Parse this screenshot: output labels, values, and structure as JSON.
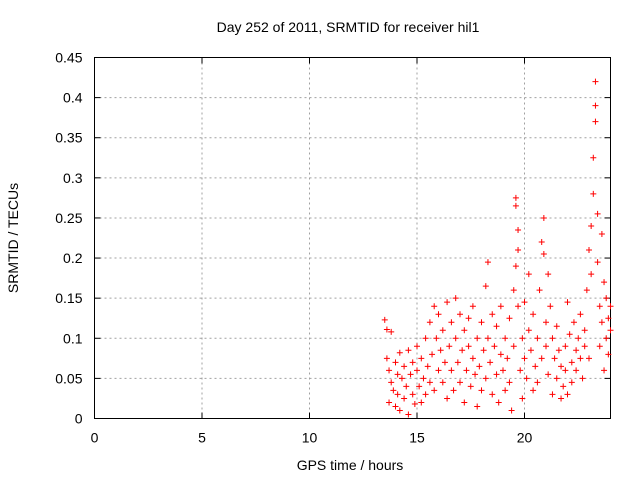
{
  "chart_data": {
    "type": "scatter",
    "title": "Day 252 of 2011, SRMTID for receiver hil1",
    "xlabel": "GPS time / hours",
    "ylabel": "SRMTID / TECUs",
    "xlim": [
      0,
      24
    ],
    "ylim": [
      0,
      0.45
    ],
    "x_ticks": [
      0,
      5,
      10,
      15,
      20
    ],
    "y_ticks": [
      0,
      0.05,
      0.1,
      0.15,
      0.2,
      0.25,
      0.3,
      0.35,
      0.4,
      0.45
    ],
    "x_tick_labels": [
      "0",
      "5",
      "10",
      "15",
      "20"
    ],
    "y_tick_labels": [
      "0",
      "0.05",
      "0.1",
      "0.15",
      "0.2",
      "0.25",
      "0.3",
      "0.35",
      "0.4",
      "0.45"
    ],
    "grid": true,
    "marker": "plus",
    "color": "#ff0000",
    "series": [
      {
        "points": [
          [
            13.5,
            0.123
          ],
          [
            13.6,
            0.111
          ],
          [
            13.6,
            0.075
          ],
          [
            13.7,
            0.06
          ],
          [
            13.7,
            0.02
          ],
          [
            13.8,
            0.108
          ],
          [
            13.8,
            0.045
          ],
          [
            13.9,
            0.035
          ],
          [
            14.0,
            0.07
          ],
          [
            14.0,
            0.015
          ],
          [
            14.1,
            0.055
          ],
          [
            14.1,
            0.03
          ],
          [
            14.2,
            0.082
          ],
          [
            14.2,
            0.01
          ],
          [
            14.3,
            0.05
          ],
          [
            14.4,
            0.065
          ],
          [
            14.4,
            0.025
          ],
          [
            14.5,
            0.04
          ],
          [
            14.6,
            0.085
          ],
          [
            14.6,
            0.005
          ],
          [
            14.7,
            0.055
          ],
          [
            14.8,
            0.03
          ],
          [
            14.8,
            0.07
          ],
          [
            14.9,
            0.018
          ],
          [
            15.0,
            0.06
          ],
          [
            15.0,
            0.09
          ],
          [
            15.1,
            0.04
          ],
          [
            15.2,
            0.075
          ],
          [
            15.2,
            0.02
          ],
          [
            15.3,
            0.05
          ],
          [
            15.4,
            0.1
          ],
          [
            15.4,
            0.03
          ],
          [
            15.5,
            0.065
          ],
          [
            15.6,
            0.12
          ],
          [
            15.6,
            0.045
          ],
          [
            15.7,
            0.08
          ],
          [
            15.8,
            0.14
          ],
          [
            15.8,
            0.035
          ],
          [
            15.9,
            0.1
          ],
          [
            16.0,
            0.06
          ],
          [
            16.0,
            0.13
          ],
          [
            16.1,
            0.085
          ],
          [
            16.2,
            0.045
          ],
          [
            16.2,
            0.11
          ],
          [
            16.3,
            0.07
          ],
          [
            16.4,
            0.145
          ],
          [
            16.4,
            0.025
          ],
          [
            16.5,
            0.09
          ],
          [
            16.6,
            0.06
          ],
          [
            16.6,
            0.12
          ],
          [
            16.7,
            0.035
          ],
          [
            16.8,
            0.1
          ],
          [
            16.8,
            0.15
          ],
          [
            16.9,
            0.07
          ],
          [
            17.0,
            0.045
          ],
          [
            17.0,
            0.13
          ],
          [
            17.1,
            0.085
          ],
          [
            17.2,
            0.02
          ],
          [
            17.2,
            0.11
          ],
          [
            17.3,
            0.06
          ],
          [
            17.4,
            0.125
          ],
          [
            17.4,
            0.09
          ],
          [
            17.5,
            0.04
          ],
          [
            17.6,
            0.075
          ],
          [
            17.6,
            0.14
          ],
          [
            17.7,
            0.055
          ],
          [
            17.8,
            0.1
          ],
          [
            17.8,
            0.015
          ],
          [
            17.9,
            0.065
          ],
          [
            18.0,
            0.12
          ],
          [
            18.0,
            0.035
          ],
          [
            18.1,
            0.085
          ],
          [
            18.2,
            0.165
          ],
          [
            18.2,
            0.05
          ],
          [
            18.3,
            0.195
          ],
          [
            18.3,
            0.1
          ],
          [
            18.4,
            0.07
          ],
          [
            18.5,
            0.03
          ],
          [
            18.5,
            0.13
          ],
          [
            18.6,
            0.09
          ],
          [
            18.7,
            0.055
          ],
          [
            18.7,
            0.115
          ],
          [
            18.8,
            0.02
          ],
          [
            18.9,
            0.08
          ],
          [
            18.9,
            0.14
          ],
          [
            19.0,
            0.06
          ],
          [
            19.1,
            0.1
          ],
          [
            19.1,
            0.035
          ],
          [
            19.2,
            0.075
          ],
          [
            19.3,
            0.125
          ],
          [
            19.3,
            0.045
          ],
          [
            19.4,
            0.01
          ],
          [
            19.5,
            0.09
          ],
          [
            19.5,
            0.16
          ],
          [
            19.6,
            0.19
          ],
          [
            19.6,
            0.275
          ],
          [
            19.6,
            0.265
          ],
          [
            19.7,
            0.235
          ],
          [
            19.7,
            0.21
          ],
          [
            19.7,
            0.14
          ],
          [
            19.8,
            0.06
          ],
          [
            19.9,
            0.1
          ],
          [
            19.9,
            0.025
          ],
          [
            20.0,
            0.075
          ],
          [
            20.0,
            0.145
          ],
          [
            20.1,
            0.05
          ],
          [
            20.2,
            0.11
          ],
          [
            20.2,
            0.18
          ],
          [
            20.3,
            0.085
          ],
          [
            20.4,
            0.035
          ],
          [
            20.4,
            0.13
          ],
          [
            20.5,
            0.065
          ],
          [
            20.6,
            0.1
          ],
          [
            20.6,
            0.045
          ],
          [
            20.7,
            0.16
          ],
          [
            20.8,
            0.075
          ],
          [
            20.8,
            0.22
          ],
          [
            20.9,
            0.25
          ],
          [
            20.9,
            0.205
          ],
          [
            21.0,
            0.12
          ],
          [
            21.0,
            0.09
          ],
          [
            21.1,
            0.18
          ],
          [
            21.1,
            0.055
          ],
          [
            21.2,
            0.14
          ],
          [
            21.3,
            0.1
          ],
          [
            21.3,
            0.03
          ],
          [
            21.4,
            0.075
          ],
          [
            21.5,
            0.05
          ],
          [
            21.5,
            0.115
          ],
          [
            21.6,
            0.085
          ],
          [
            21.7,
            0.025
          ],
          [
            21.7,
            0.065
          ],
          [
            21.8,
            0.04
          ],
          [
            21.9,
            0.09
          ],
          [
            21.9,
            0.06
          ],
          [
            22.0,
            0.145
          ],
          [
            22.0,
            0.03
          ],
          [
            22.1,
            0.105
          ],
          [
            22.2,
            0.07
          ],
          [
            22.2,
            0.045
          ],
          [
            22.3,
            0.12
          ],
          [
            22.4,
            0.085
          ],
          [
            22.4,
            0.06
          ],
          [
            22.5,
            0.1
          ],
          [
            22.6,
            0.075
          ],
          [
            22.6,
            0.13
          ],
          [
            22.7,
            0.05
          ],
          [
            22.8,
            0.09
          ],
          [
            22.8,
            0.11
          ],
          [
            22.9,
            0.16
          ],
          [
            23.0,
            0.075
          ],
          [
            23.0,
            0.21
          ],
          [
            23.1,
            0.24
          ],
          [
            23.1,
            0.18
          ],
          [
            23.2,
            0.28
          ],
          [
            23.2,
            0.325
          ],
          [
            23.3,
            0.37
          ],
          [
            23.3,
            0.39
          ],
          [
            23.3,
            0.42
          ],
          [
            23.4,
            0.255
          ],
          [
            23.4,
            0.195
          ],
          [
            23.5,
            0.14
          ],
          [
            23.5,
            0.09
          ],
          [
            23.6,
            0.23
          ],
          [
            23.6,
            0.12
          ],
          [
            23.7,
            0.17
          ],
          [
            23.7,
            0.06
          ],
          [
            23.8,
            0.1
          ],
          [
            23.8,
            0.15
          ],
          [
            23.9,
            0.08
          ],
          [
            23.9,
            0.125
          ],
          [
            24.0,
            0.11
          ],
          [
            24.0,
            0.14
          ]
        ]
      }
    ]
  }
}
